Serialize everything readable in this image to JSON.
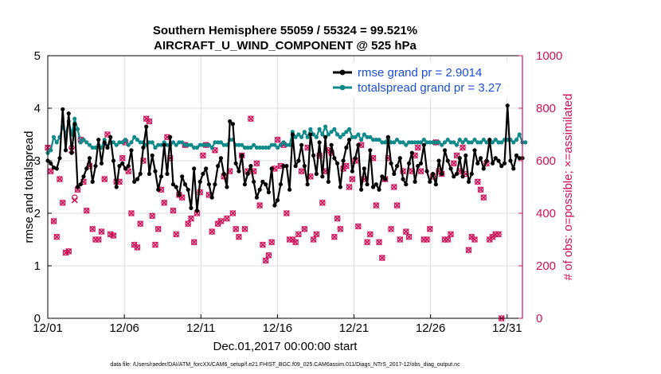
{
  "chart_data": {
    "type": "line",
    "title": [
      "Southern Hemisphere 55059 / 55324 = 99.521%",
      "AIRCRAFT_U_WIND_COMPONENT @ 525 hPa"
    ],
    "xlabel": "Dec.01,2017 00:00:00 start",
    "ylabel": "rmse and totalspread",
    "y2label": "# of obs: o=possible; ×=assimilated",
    "xlim": [
      0,
      31
    ],
    "ylim": [
      0,
      5
    ],
    "y2lim": [
      0,
      1000
    ],
    "x_ticks": [
      0,
      5,
      10,
      15,
      20,
      25,
      30
    ],
    "x_tick_labels": [
      "12/01",
      "12/06",
      "12/11",
      "12/16",
      "12/21",
      "12/26",
      "12/31"
    ],
    "y_ticks": [
      0,
      1,
      2,
      3,
      4,
      5
    ],
    "y2_ticks": [
      0,
      200,
      400,
      600,
      800,
      1000
    ],
    "colors": {
      "rmse": "#000000",
      "spread": "#0f8a8a",
      "obs": "#d0105a",
      "legend_text": "#1a4fd6",
      "right_axis": "#d0105a"
    },
    "legend": [
      "rmse grand pr = 2.9014",
      "totalspread grand pr = 3.27"
    ],
    "footnote": "data file: /Users/raeder/DAI/ATM_forcXX/CAM6_setup/f.e21.FHIST_BGC.f09_025.CAM6assim.011/Diags_NTrS_2017-12/obs_diag_output.nc",
    "series": [
      {
        "name": "rmse",
        "values": [
          3.0,
          2.95,
          2.87,
          2.85,
          3.05,
          3.98,
          3.2,
          3.9,
          3.15,
          3.7,
          2.5,
          2.55,
          2.7,
          2.85,
          3.05,
          2.6,
          2.9,
          3.4,
          2.95,
          3.35,
          3.25,
          3.45,
          3.0,
          2.5,
          2.9,
          2.95,
          2.85,
          2.9,
          3.2,
          2.6,
          2.65,
          2.75,
          3.25,
          3.65,
          2.75,
          3.1,
          2.8,
          2.45,
          2.7,
          3.3,
          2.75,
          3.45,
          2.55,
          2.5,
          2.35,
          2.7,
          2.55,
          2.45,
          2.1,
          2.85,
          2.05,
          2.6,
          2.75,
          2.85,
          2.55,
          2.3,
          2.55,
          2.9,
          3.05,
          2.75,
          2.5,
          3.75,
          3.7,
          2.95,
          2.8,
          3.1,
          2.55,
          2.75,
          2.9,
          2.6,
          2.3,
          2.45,
          2.6,
          2.55,
          2.4,
          2.85,
          2.15,
          2.25,
          2.55,
          2.9,
          2.9,
          2.45,
          3.5,
          2.9,
          3.0,
          3.3,
          2.9,
          2.55,
          3.5,
          3.1,
          2.75,
          3.35,
          2.7,
          3.45,
          2.6,
          3.3,
          3.05,
          2.95,
          2.5,
          3.0,
          3.25,
          3.4,
          2.8,
          3.05,
          3.3,
          2.45,
          2.85,
          2.55,
          3.2,
          2.5,
          2.55,
          2.45,
          2.7,
          2.65,
          3.45,
          2.95,
          2.75,
          2.9,
          3.05,
          2.65,
          2.55,
          2.95,
          3.15,
          2.6,
          2.9,
          2.95,
          3.3,
          2.8,
          2.6,
          2.75,
          2.55,
          3.0,
          2.75,
          3.2,
          3.0,
          2.85,
          2.7,
          2.75,
          3.05,
          2.7,
          3.1,
          2.6,
          2.75,
          3.2,
          2.95,
          3.05,
          2.85,
          3.0,
          3.4,
          2.95,
          3.05,
          3.0,
          2.9,
          2.95,
          4.05,
          3.0,
          2.85,
          3.1,
          3.05,
          3.05
        ]
      },
      {
        "name": "totalspread",
        "values": [
          3.15,
          3.2,
          3.45,
          3.35,
          3.45,
          3.65,
          3.5,
          3.75,
          3.5,
          3.8,
          3.6,
          3.35,
          3.4,
          3.35,
          3.3,
          3.25,
          3.25,
          3.3,
          3.25,
          3.4,
          3.25,
          3.35,
          3.35,
          3.3,
          3.35,
          3.35,
          3.4,
          3.3,
          3.35,
          3.45,
          3.4,
          3.35,
          3.35,
          3.3,
          3.35,
          3.35,
          3.25,
          3.3,
          3.3,
          3.35,
          3.3,
          3.3,
          3.35,
          3.3,
          3.35,
          3.35,
          3.3,
          3.3,
          3.3,
          3.25,
          3.25,
          3.3,
          3.3,
          3.3,
          3.3,
          3.25,
          3.35,
          3.35,
          3.35,
          3.3,
          3.3,
          3.4,
          3.4,
          3.3,
          3.3,
          3.3,
          3.25,
          3.25,
          3.25,
          3.3,
          3.25,
          3.25,
          3.25,
          3.25,
          3.25,
          3.3,
          3.3,
          3.25,
          3.3,
          3.35,
          3.3,
          3.3,
          3.55,
          3.45,
          3.5,
          3.45,
          3.55,
          3.45,
          3.6,
          3.5,
          3.45,
          3.6,
          3.5,
          3.65,
          3.5,
          3.55,
          3.6,
          3.5,
          3.45,
          3.5,
          3.55,
          3.6,
          3.45,
          3.45,
          3.5,
          3.4,
          3.5,
          3.45,
          3.45,
          3.4,
          3.4,
          3.4,
          3.35,
          3.35,
          3.45,
          3.35,
          3.35,
          3.4,
          3.35,
          3.35,
          3.3,
          3.35,
          3.35,
          3.35,
          3.35,
          3.35,
          3.4,
          3.35,
          3.35,
          3.35,
          3.35,
          3.35,
          3.3,
          3.35,
          3.4,
          3.35,
          3.35,
          3.3,
          3.4,
          3.35,
          3.4,
          3.35,
          3.35,
          3.4,
          3.35,
          3.35,
          3.4,
          3.35,
          3.35,
          3.35,
          3.4,
          3.35,
          3.35,
          3.4,
          3.4,
          3.4,
          3.35,
          3.4,
          3.5,
          3.35,
          3.35
        ]
      },
      {
        "name": "obs_possible",
        "values": [
          650,
          560,
          370,
          310,
          530,
          440,
          250,
          255,
          650,
          460,
          490,
          680,
          520,
          410,
          580,
          340,
          300,
          300,
          330,
          530,
          700,
          320,
          315,
          520,
          520,
          610,
          670,
          560,
          400,
          280,
          270,
          360,
          600,
          760,
          750,
          390,
          280,
          340,
          490,
          440,
          690,
          610,
          410,
          320,
          470,
          460,
          660,
          360,
          380,
          290,
          400,
          480,
          620,
          660,
          470,
          330,
          640,
          360,
          370,
          540,
          380,
          560,
          400,
          340,
          310,
          620,
          340,
          560,
          760,
          560,
          590,
          430,
          280,
          220,
          240,
          290,
          570,
          680,
          580,
          660,
          400,
          300,
          300,
          290,
          320,
          560,
          340,
          650,
          540,
          300,
          320,
          620,
          440,
          560,
          640,
          630,
          310,
          380,
          340,
          570,
          580,
          500,
          530,
          600,
          350,
          660,
          530,
          290,
          320,
          610,
          430,
          290,
          230,
          530,
          610,
          340,
          500,
          430,
          300,
          560,
          330,
          310,
          560,
          620,
          650,
          560,
          300,
          300,
          340,
          540,
          670,
          560,
          550,
          300,
          300,
          320,
          590,
          620,
          560,
          650,
          550,
          260,
          310,
          300,
          520,
          490,
          460,
          590,
          300,
          310,
          320,
          320,
          0
        ]
      },
      {
        "name": "obs_assimilated",
        "values": [
          650,
          560,
          370,
          310,
          530,
          440,
          250,
          255,
          640,
          450,
          490,
          680,
          520,
          410,
          580,
          340,
          300,
          300,
          330,
          530,
          700,
          320,
          315,
          520,
          520,
          610,
          670,
          560,
          400,
          280,
          270,
          360,
          600,
          760,
          750,
          390,
          280,
          340,
          490,
          440,
          690,
          610,
          410,
          320,
          470,
          460,
          660,
          360,
          380,
          290,
          400,
          480,
          620,
          660,
          470,
          330,
          640,
          360,
          370,
          540,
          380,
          560,
          400,
          340,
          310,
          620,
          340,
          560,
          760,
          560,
          590,
          430,
          280,
          220,
          240,
          290,
          570,
          680,
          580,
          660,
          400,
          300,
          300,
          290,
          320,
          560,
          340,
          650,
          540,
          300,
          320,
          620,
          440,
          560,
          640,
          630,
          310,
          380,
          340,
          570,
          580,
          500,
          530,
          600,
          350,
          660,
          530,
          290,
          320,
          610,
          430,
          290,
          230,
          530,
          610,
          340,
          500,
          430,
          300,
          560,
          330,
          310,
          560,
          620,
          650,
          560,
          300,
          300,
          340,
          540,
          670,
          560,
          550,
          300,
          300,
          320,
          590,
          620,
          560,
          650,
          550,
          260,
          310,
          300,
          520,
          490,
          460,
          590,
          300,
          310,
          320,
          320,
          0
        ]
      }
    ]
  }
}
